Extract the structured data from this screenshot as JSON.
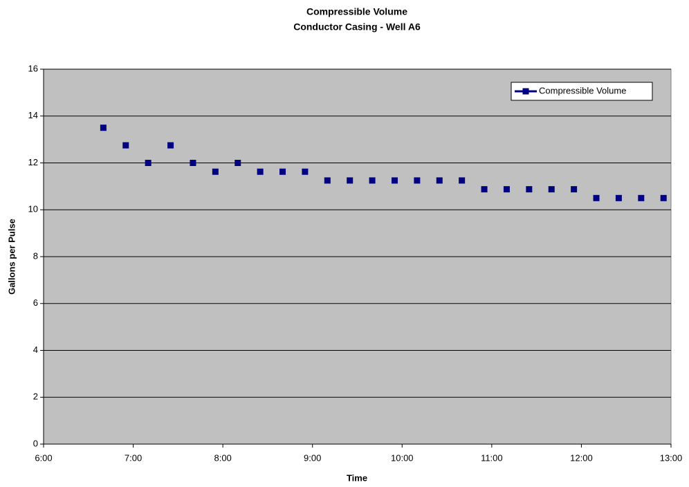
{
  "chart_data": {
    "type": "scatter",
    "title": "Compressible Volume",
    "subtitle": "Conductor Casing - Well A6",
    "x_label": "Time",
    "y_label": "Gallons per Pulse",
    "x": [
      400,
      415,
      430,
      445,
      460,
      475,
      490,
      505,
      520,
      535,
      550,
      565,
      580,
      595,
      610,
      625,
      640,
      655,
      670,
      685,
      700,
      715,
      730,
      745,
      760,
      775
    ],
    "series": [
      {
        "name": "Compressible Volume",
        "color": "#000080",
        "values": [
          13.5,
          12.75,
          12,
          12.75,
          12,
          11.625,
          12,
          11.625,
          11.625,
          11.625,
          11.25,
          11.25,
          11.25,
          11.25,
          11.25,
          11.25,
          11.25,
          10.875,
          10.875,
          10.875,
          10.875,
          10.875,
          10.5,
          10.5,
          10.5,
          10.5
        ]
      }
    ],
    "xlim": [
      360,
      780
    ],
    "xticks": [
      {
        "value": 360,
        "label": "6:00"
      },
      {
        "value": 420,
        "label": "7:00"
      },
      {
        "value": 480,
        "label": "8:00"
      },
      {
        "value": 540,
        "label": "9:00"
      },
      {
        "value": 600,
        "label": "10:00"
      },
      {
        "value": 660,
        "label": "11:00"
      },
      {
        "value": 720,
        "label": "12:00"
      },
      {
        "value": 780,
        "label": "13:00"
      }
    ],
    "ylim": [
      0,
      16
    ],
    "yticks": [
      0,
      2,
      4,
      6,
      8,
      10,
      12,
      14,
      16
    ],
    "grid": true,
    "legend": "top-right",
    "plot_background": "#c0c0c0"
  }
}
